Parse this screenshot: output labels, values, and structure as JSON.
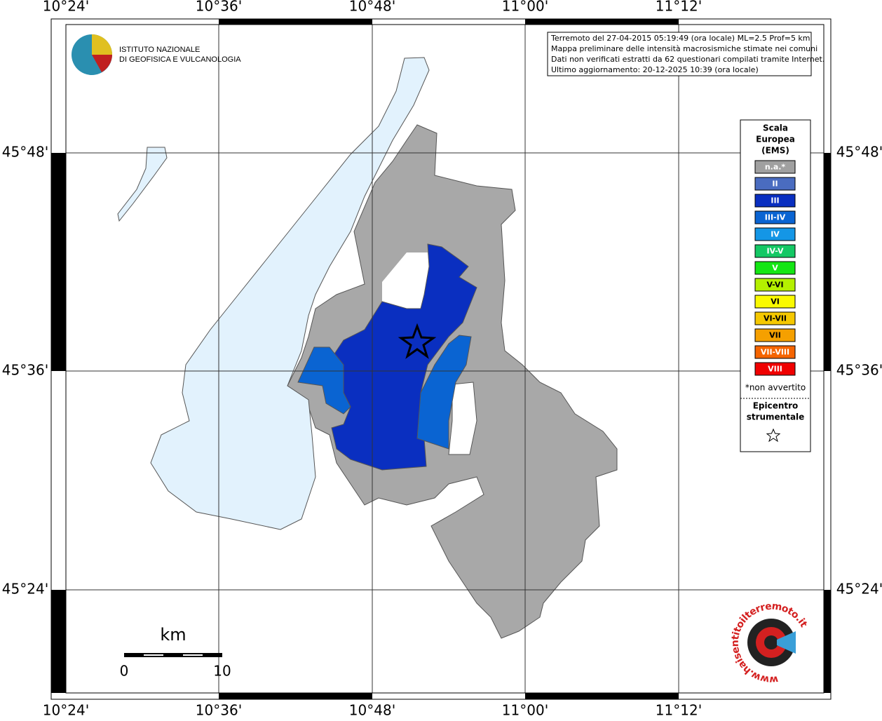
{
  "info": {
    "lines": [
      "Terremoto del 27-04-2015 05:19:49 (ora locale) ML=2.5 Prof=5 km",
      "Mappa preliminare delle intensità macrosismiche stimate nei comuni",
      "Dati non verificati estratti da 62 questionari compilati tramite Internet.",
      "Ultimo aggiornamento: 20-12-2025 10:39 (ora locale)"
    ]
  },
  "logo": {
    "line1": "ISTITUTO NAZIONALE",
    "line2": "DI GEOFISICA E VULCANOLOGIA"
  },
  "axes": {
    "longitudes": [
      "10°24'",
      "10°36'",
      "10°48'",
      "11°00'",
      "11°12'"
    ],
    "latitudes": [
      "45°48'",
      "45°36'",
      "45°24'"
    ]
  },
  "legend": {
    "title": [
      "Scala",
      "Europea",
      "(EMS)"
    ],
    "items": [
      {
        "label": "n.a.*",
        "color": "#a0a0a0"
      },
      {
        "label": "II",
        "color": "#4a6cc0"
      },
      {
        "label": "III",
        "color": "#0a2fc0"
      },
      {
        "label": "III-IV",
        "color": "#0a64d2"
      },
      {
        "label": "IV",
        "color": "#1496e6"
      },
      {
        "label": "IV-V",
        "color": "#14c864"
      },
      {
        "label": "V",
        "color": "#14e614"
      },
      {
        "label": "V-VI",
        "color": "#b4f000"
      },
      {
        "label": "VI",
        "color": "#fafa00"
      },
      {
        "label": "VI-VII",
        "color": "#f5c800"
      },
      {
        "label": "VII",
        "color": "#f5a000"
      },
      {
        "label": "VII-VIII",
        "color": "#f56400"
      },
      {
        "label": "VIII",
        "color": "#f00000"
      }
    ],
    "note": "*non avvertito",
    "epicenter": [
      "Epicentro",
      "strumentale"
    ]
  },
  "scale": {
    "unit": "km",
    "start": "0",
    "end": "10"
  },
  "badge": {
    "text": "www.haisentitoilterremoto.it"
  }
}
